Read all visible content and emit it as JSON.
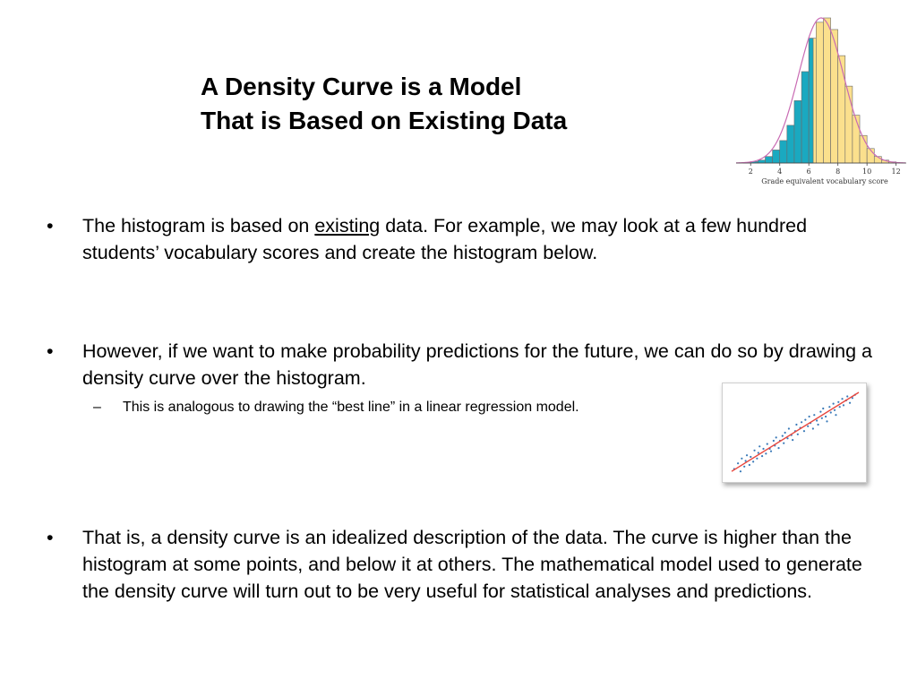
{
  "slide": {
    "title_line1": "A Density Curve is a Model",
    "title_line2": "That is Based on Existing Data"
  },
  "bullets": [
    {
      "marker": "•",
      "text_before": "The histogram is based on ",
      "underlined": "existing",
      "text_after": " data.  For example, we may look at a few hundred students’ vocabulary scores and create the histogram below."
    },
    {
      "marker": "•",
      "text": "However, if we want to make probability predictions for the future, we can do so by drawing a density curve over the histogram."
    },
    {
      "marker": "•",
      "text": "That is, a density curve is an idealized description of the data. The curve is higher than the histogram at some points, and below it at others. The mathematical model used to generate the density curve will turn out to be very useful for statistical analyses and predictions."
    }
  ],
  "subbullet": {
    "marker": "–",
    "text": "This is analogous to drawing the “best line” in a linear regression model."
  },
  "colors": {
    "bar_fill": "#fbe08d",
    "bar_shaded": "#1aa9c0",
    "curve": "#c96bb3",
    "regression_line": "#e8473e",
    "points": "#3a7ab8"
  },
  "chart_data": [
    {
      "type": "bar",
      "xlabel": "Grade equivalent vocabulary score",
      "ticks": [
        2,
        4,
        6,
        8,
        10,
        12
      ],
      "xlim": [
        1,
        12.7
      ],
      "bin_width": 0.5,
      "bin_starts": [
        1.5,
        2,
        2.5,
        3,
        3.5,
        4,
        4.5,
        5,
        5.5,
        6,
        6.5,
        7,
        7.5,
        8,
        8.5,
        9,
        9.5,
        10,
        10.5,
        11,
        11.5
      ],
      "heights": [
        0.004,
        0.01,
        0.02,
        0.045,
        0.09,
        0.155,
        0.26,
        0.43,
        0.63,
        0.86,
        0.97,
        1.0,
        0.92,
        0.74,
        0.53,
        0.33,
        0.19,
        0.1,
        0.045,
        0.02,
        0.008
      ],
      "shaded_below": 6.3,
      "curve": "normal",
      "curve_mean": 6.84,
      "curve_sd": 1.55
    },
    {
      "type": "scatter",
      "x": [
        0.02,
        0.05,
        0.07,
        0.08,
        0.1,
        0.11,
        0.12,
        0.14,
        0.15,
        0.17,
        0.18,
        0.2,
        0.21,
        0.22,
        0.24,
        0.25,
        0.27,
        0.28,
        0.3,
        0.31,
        0.33,
        0.34,
        0.35,
        0.37,
        0.38,
        0.4,
        0.41,
        0.42,
        0.44,
        0.45,
        0.47,
        0.48,
        0.5,
        0.51,
        0.52,
        0.54,
        0.55,
        0.57,
        0.58,
        0.6,
        0.61,
        0.62,
        0.64,
        0.65,
        0.67,
        0.68,
        0.7,
        0.71,
        0.72,
        0.74,
        0.75,
        0.77,
        0.78,
        0.8,
        0.81,
        0.82,
        0.84,
        0.85,
        0.87,
        0.88,
        0.9,
        0.91,
        0.93,
        0.95,
        0.97
      ],
      "y": [
        0.05,
        0.12,
        0.02,
        0.18,
        0.08,
        0.15,
        0.22,
        0.1,
        0.2,
        0.14,
        0.28,
        0.18,
        0.25,
        0.33,
        0.21,
        0.3,
        0.24,
        0.36,
        0.3,
        0.27,
        0.4,
        0.34,
        0.44,
        0.31,
        0.4,
        0.46,
        0.37,
        0.5,
        0.43,
        0.55,
        0.47,
        0.41,
        0.52,
        0.6,
        0.48,
        0.56,
        0.63,
        0.52,
        0.66,
        0.58,
        0.7,
        0.62,
        0.55,
        0.72,
        0.65,
        0.6,
        0.76,
        0.68,
        0.8,
        0.7,
        0.64,
        0.82,
        0.75,
        0.86,
        0.78,
        0.72,
        0.88,
        0.82,
        0.92,
        0.84,
        0.9,
        0.95,
        0.87,
        0.93,
        0.97
      ],
      "fit_line": [
        [
          0.0,
          0.02
        ],
        [
          1.0,
          1.0
        ]
      ],
      "xlim": [
        0,
        1
      ],
      "ylim": [
        0,
        1
      ]
    }
  ]
}
